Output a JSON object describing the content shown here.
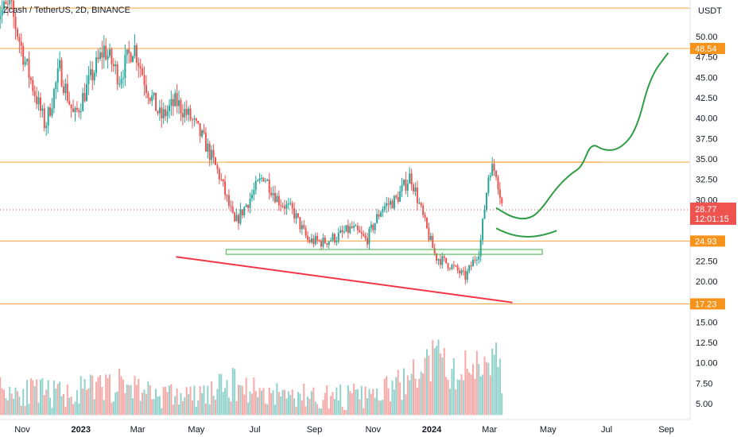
{
  "header": {
    "title": "Zcash / TetherUS, 2D, BINANCE",
    "currency": "USDT"
  },
  "colors": {
    "up": "#26a69a",
    "down": "#ef5350",
    "level": "#f7a440",
    "badge": "#f7931a",
    "trendline": "#f23645",
    "projection": "#2e9d45",
    "support_box": "#4caf50",
    "last_price_bg": "#ef5350",
    "grid_text": "#131722"
  },
  "price_badges": [
    {
      "label": "48.54",
      "value": 48.54
    },
    {
      "label": "24.93",
      "value": 24.93
    },
    {
      "label": "17.23",
      "value": 17.23
    }
  ],
  "last_price": {
    "label": "28.77",
    "value": 28.77,
    "countdown": "12:01:15"
  },
  "chart_data": {
    "type": "candlestick",
    "title": "Zcash / TetherUS, 2D, BINANCE",
    "ylabel": "USDT",
    "ylim": [
      3.4,
      54.5
    ],
    "y_ticks": [
      "50.00",
      "47.50",
      "45.00",
      "42.50",
      "40.00",
      "37.50",
      "35.00",
      "32.50",
      "30.00",
      "22.50",
      "20.00",
      "15.00",
      "12.50",
      "10.00",
      "7.50",
      "5.00"
    ],
    "y_tick_values": [
      50,
      47.5,
      45,
      42.5,
      40,
      37.5,
      35,
      32.5,
      30,
      22.5,
      20,
      15,
      12.5,
      10,
      7.5,
      5
    ],
    "x_ticks": [
      "Nov",
      "2023",
      "Mar",
      "May",
      "Jul",
      "Sep",
      "Nov",
      "2024",
      "Mar",
      "May",
      "Jul",
      "Sep"
    ],
    "x_tick_dates": [
      "2022-11-01",
      "2023-01-01",
      "2023-03-01",
      "2023-05-01",
      "2023-07-01",
      "2023-09-01",
      "2023-11-01",
      "2024-01-01",
      "2024-03-01",
      "2024-05-01",
      "2024-07-01",
      "2024-09-01"
    ],
    "x_range": [
      "2022-10-05",
      "2024-09-15"
    ],
    "horizontal_levels": [
      53.5,
      48.54,
      34.6,
      24.93,
      17.23
    ],
    "support_zone": {
      "start": "2023-06-01",
      "end": "2024-04-25",
      "low": 23.3,
      "high": 23.9
    },
    "trendline": {
      "start": [
        "2023-04-10",
        23.0
      ],
      "end": [
        "2024-03-25",
        17.4
      ]
    },
    "projection_path": [
      [
        "2024-03-08",
        29.0
      ],
      [
        "2024-03-25",
        27.8
      ],
      [
        "2024-04-10",
        27.6
      ],
      [
        "2024-04-22",
        28.5
      ],
      [
        "2024-05-10",
        31.5
      ],
      [
        "2024-05-25",
        33.2
      ],
      [
        "2024-06-05",
        34.0
      ],
      [
        "2024-06-15",
        37.0
      ],
      [
        "2024-06-28",
        36.0
      ],
      [
        "2024-07-15",
        36.2
      ],
      [
        "2024-08-01",
        38.5
      ],
      [
        "2024-08-15",
        45.0
      ],
      [
        "2024-09-03",
        48.0
      ]
    ],
    "projection_arc": [
      [
        "2024-03-08",
        26.5
      ],
      [
        "2024-04-01",
        25.0
      ],
      [
        "2024-04-20",
        25.3
      ],
      [
        "2024-05-10",
        26.2
      ]
    ],
    "candle_anchors": [
      [
        "2022-10-05",
        53.0
      ],
      [
        "2022-10-20",
        53.5
      ],
      [
        "2022-11-05",
        46.5
      ],
      [
        "2022-11-25",
        39.0
      ],
      [
        "2022-12-10",
        46.0
      ],
      [
        "2022-12-25",
        40.0
      ],
      [
        "2023-01-10",
        44.5
      ],
      [
        "2023-01-25",
        48.5
      ],
      [
        "2023-02-10",
        45.0
      ],
      [
        "2023-02-25",
        49.0
      ],
      [
        "2023-03-10",
        44.0
      ],
      [
        "2023-03-25",
        40.0
      ],
      [
        "2023-04-10",
        42.0
      ],
      [
        "2023-04-25",
        40.0
      ],
      [
        "2023-05-10",
        37.0
      ],
      [
        "2023-05-25",
        33.0
      ],
      [
        "2023-06-10",
        27.0
      ],
      [
        "2023-06-25",
        30.0
      ],
      [
        "2023-07-10",
        33.0
      ],
      [
        "2023-07-25",
        30.0
      ],
      [
        "2023-08-10",
        28.5
      ],
      [
        "2023-08-25",
        25.0
      ],
      [
        "2023-09-10",
        24.8
      ],
      [
        "2023-09-25",
        25.5
      ],
      [
        "2023-10-10",
        26.5
      ],
      [
        "2023-10-25",
        25.0
      ],
      [
        "2023-11-10",
        29.0
      ],
      [
        "2023-11-25",
        30.0
      ],
      [
        "2023-12-10",
        33.0
      ],
      [
        "2023-12-25",
        27.0
      ],
      [
        "2024-01-05",
        23.0
      ],
      [
        "2024-01-20",
        22.0
      ],
      [
        "2024-02-05",
        20.5
      ],
      [
        "2024-02-20",
        24.0
      ],
      [
        "2024-03-01",
        34.0
      ],
      [
        "2024-03-08",
        33.5
      ],
      [
        "2024-03-15",
        28.77
      ]
    ],
    "volume_anchors": [
      [
        "2022-10-05",
        6.5
      ],
      [
        "2022-11-15",
        6.0
      ],
      [
        "2022-12-15",
        5.8
      ],
      [
        "2023-01-15",
        6.5
      ],
      [
        "2023-02-20",
        7.0
      ],
      [
        "2023-03-20",
        5.8
      ],
      [
        "2023-05-01",
        5.5
      ],
      [
        "2023-06-10",
        7.0
      ],
      [
        "2023-07-10",
        6.0
      ],
      [
        "2023-09-01",
        5.5
      ],
      [
        "2023-11-01",
        5.5
      ],
      [
        "2023-12-10",
        7.5
      ],
      [
        "2024-01-05",
        10.0
      ],
      [
        "2024-01-25",
        8.0
      ],
      [
        "2024-02-20",
        9.5
      ],
      [
        "2024-03-05",
        11.0
      ],
      [
        "2024-03-15",
        7.0
      ]
    ]
  }
}
